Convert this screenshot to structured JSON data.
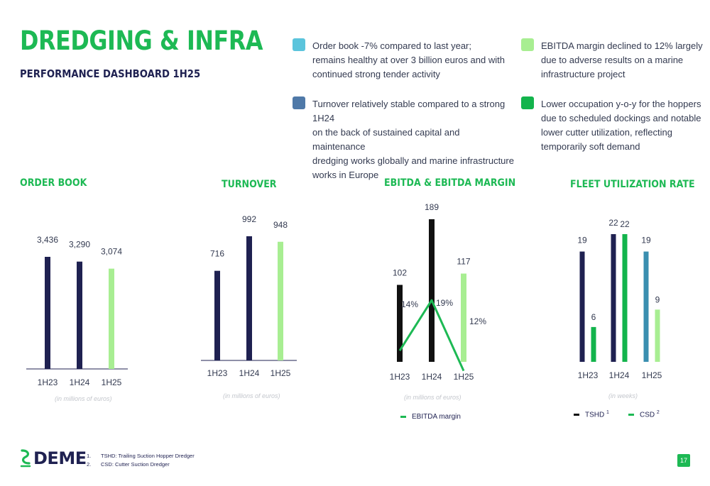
{
  "header": {
    "title": "DREDGING & INFRA",
    "subtitle": "PERFORMANCE DASHBOARD 1H25"
  },
  "notes": [
    {
      "text": "Order book -7% compared to last year;\nremains healthy at over 3 billion euros and with\ncontinued strong tender activity",
      "color": "#5bc4dc"
    },
    {
      "text": "EBITDA margin declined to 12% largely\ndue to adverse results on a marine\ninfrastructure project",
      "color": "#a8ee92"
    },
    {
      "text": "Turnover relatively stable compared to a strong 1H24\non the back of sustained capital and maintenance\ndredging works globally and marine infrastructure\nworks in Europe",
      "color": "#4f79a8"
    },
    {
      "text": "Lower occupation y-o-y for the hoppers\ndue to scheduled dockings and notable\nlower cutter utilization, reflecting\ntemporarily soft demand",
      "color": "#13b44c"
    }
  ],
  "colors": {
    "brand_green": "#1db954",
    "navy": "#1f2151",
    "light_green": "#a8ee92",
    "black": "#111111",
    "teal": "#3a8fb0"
  },
  "chart_data": [
    {
      "type": "bar",
      "title": "ORDER BOOK",
      "unit_note": "(in millions of euros)",
      "categories": [
        "1H23",
        "1H24",
        "1H25"
      ],
      "values": [
        3436,
        3290,
        3074
      ],
      "value_labels": [
        "3,436",
        "3,290",
        "3,074"
      ],
      "bar_colors": [
        "#1f2151",
        "#1f2151",
        "#a8ee92"
      ]
    },
    {
      "type": "bar",
      "title": "TURNOVER",
      "unit_note": "(in millions of euros)",
      "categories": [
        "1H23",
        "1H24",
        "1H25"
      ],
      "values": [
        716,
        992,
        948
      ],
      "value_labels": [
        "716",
        "992",
        "948"
      ],
      "bar_colors": [
        "#1f2151",
        "#1f2151",
        "#a8ee92"
      ]
    },
    {
      "type": "bar",
      "title": "EBITDA & EBITDA MARGIN",
      "unit_note": "(in millions of euros)",
      "categories": [
        "1H23",
        "1H24",
        "1H25"
      ],
      "values": [
        102,
        189,
        117
      ],
      "value_labels": [
        "102",
        "189",
        "117"
      ],
      "bar_colors": [
        "#111111",
        "#111111",
        "#a8ee92"
      ],
      "line_series": {
        "name": "EBITDA margin",
        "values": [
          14,
          19,
          12
        ],
        "value_labels": [
          "14%",
          "19%",
          "12%"
        ],
        "color": "#1db954"
      }
    },
    {
      "type": "bar",
      "title": "FLEET UTILIZATION RATE",
      "unit_note": "(in weeks)",
      "categories": [
        "1H23",
        "1H24",
        "1H25"
      ],
      "series": [
        {
          "name": "TSHD",
          "footnote_ref": "1",
          "values": [
            19,
            22,
            19
          ],
          "value_labels": [
            "19",
            "22",
            "19"
          ],
          "colors": [
            "#1f2151",
            "#1f2151",
            "#3a8fb0"
          ]
        },
        {
          "name": "CSD",
          "footnote_ref": "2",
          "values": [
            6,
            22,
            9
          ],
          "value_labels": [
            "6",
            "22",
            "9"
          ],
          "colors": [
            "#13b44c",
            "#13b44c",
            "#a8ee92"
          ]
        }
      ],
      "legend_colors": [
        "#111111",
        "#1db954"
      ]
    }
  ],
  "footer": {
    "logo_text": "DEME",
    "footnotes": [
      {
        "num": "1.",
        "text": "TSHD: Trailing Suction Hopper Dredger"
      },
      {
        "num": "2.",
        "text": "CSD: Cutter Suction Dredger"
      }
    ],
    "page_number": "17"
  }
}
